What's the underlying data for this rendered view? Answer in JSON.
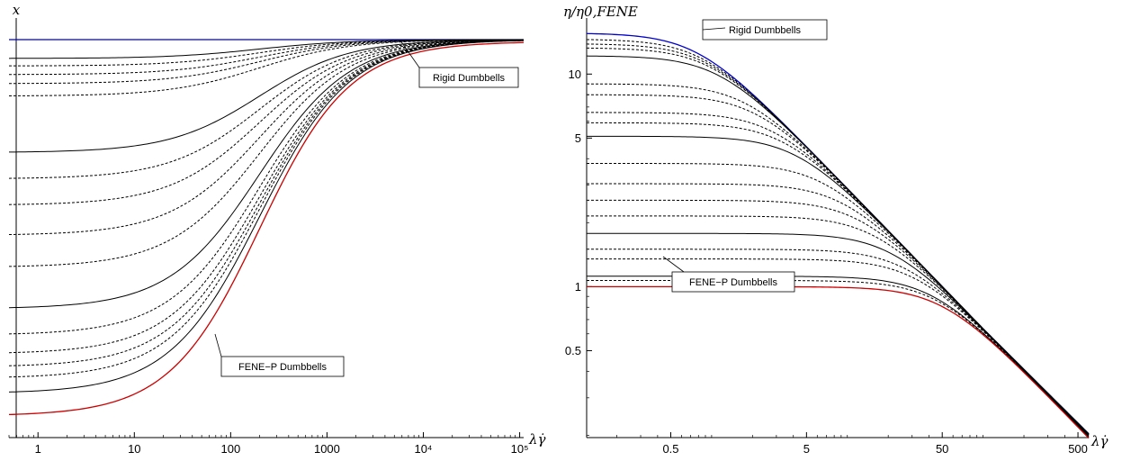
{
  "chart_data": [
    {
      "type": "line",
      "xlabel": "λγ̇",
      "ylabel": "x",
      "x_scale": "log",
      "xlim": [
        0.5,
        110000
      ],
      "x_ticks": [
        "1",
        "10",
        "100",
        "1000",
        "10⁴",
        "10⁵"
      ],
      "y_ticks": [],
      "annotations": [
        "Rigid Dumbbells",
        "FENE−P Dumbbells"
      ],
      "series": [
        {
          "name": "Rigid Dumbbells",
          "color": "#0000cc",
          "style": "solid",
          "y_low": 1.0,
          "y_high": 1.0
        },
        {
          "color": "#000000",
          "style": "solid",
          "y_low": 0.95,
          "y_high": 1.0
        },
        {
          "color": "#000000",
          "style": "dashed",
          "y_low": 0.93,
          "y_high": 1.0
        },
        {
          "color": "#000000",
          "style": "dashed",
          "y_low": 0.907,
          "y_high": 1.0
        },
        {
          "color": "#000000",
          "style": "dashed",
          "y_low": 0.883,
          "y_high": 1.0
        },
        {
          "color": "#000000",
          "style": "dashed",
          "y_low": 0.85,
          "y_high": 1.0
        },
        {
          "color": "#000000",
          "style": "solid",
          "y_low": 0.7,
          "y_high": 1.0
        },
        {
          "color": "#000000",
          "style": "dashed",
          "y_low": 0.63,
          "y_high": 1.0
        },
        {
          "color": "#000000",
          "style": "dashed",
          "y_low": 0.56,
          "y_high": 1.0
        },
        {
          "color": "#000000",
          "style": "dashed",
          "y_low": 0.48,
          "y_high": 1.0
        },
        {
          "color": "#000000",
          "style": "dashed",
          "y_low": 0.395,
          "y_high": 1.0
        },
        {
          "color": "#000000",
          "style": "solid",
          "y_low": 0.285,
          "y_high": 1.0
        },
        {
          "color": "#000000",
          "style": "dashed",
          "y_low": 0.215,
          "y_high": 1.0
        },
        {
          "color": "#000000",
          "style": "dashed",
          "y_low": 0.165,
          "y_high": 1.0
        },
        {
          "color": "#000000",
          "style": "dashed",
          "y_low": 0.13,
          "y_high": 1.0
        },
        {
          "color": "#000000",
          "style": "dashed",
          "y_low": 0.1,
          "y_high": 1.0
        },
        {
          "color": "#000000",
          "style": "solid",
          "y_low": 0.06,
          "y_high": 1.0
        },
        {
          "name": "FENE−P Dumbbells",
          "color": "#cc0000",
          "style": "solid",
          "y_low": 0.0,
          "y_high": 0.995
        }
      ],
      "transition_center_log10": 2.3,
      "transition_width_log10": 0.85
    },
    {
      "type": "line",
      "xlabel": "λγ̇",
      "ylabel": "η/η0,FENE",
      "x_scale": "log",
      "y_scale": "log",
      "xlim": [
        0.12,
        600
      ],
      "ylim": [
        0.195,
        18
      ],
      "x_ticks": [
        0.5,
        5,
        50,
        500
      ],
      "x_tick_labels": [
        "0.5",
        "5",
        "50",
        "500"
      ],
      "y_ticks": [
        0.5,
        1,
        5,
        10
      ],
      "y_tick_labels": [
        "0.5",
        "1",
        "5",
        "10"
      ],
      "annotations": [
        "Rigid Dumbbells",
        "FENE−P Dumbbells"
      ],
      "series": [
        {
          "name": "Rigid Dumbbells",
          "color": "#0000cc",
          "style": "solid",
          "zero_shear": 15.6
        },
        {
          "color": "#000000",
          "style": "dashed",
          "zero_shear": 14.6
        },
        {
          "color": "#000000",
          "style": "dashed",
          "zero_shear": 13.9
        },
        {
          "color": "#000000",
          "style": "dashed",
          "zero_shear": 13.3
        },
        {
          "color": "#000000",
          "style": "solid",
          "zero_shear": 12.2
        },
        {
          "color": "#000000",
          "style": "dashed",
          "zero_shear": 9.0
        },
        {
          "color": "#000000",
          "style": "dashed",
          "zero_shear": 8.0
        },
        {
          "color": "#000000",
          "style": "dashed",
          "zero_shear": 6.6
        },
        {
          "color": "#000000",
          "style": "dashed",
          "zero_shear": 5.9
        },
        {
          "color": "#000000",
          "style": "solid",
          "zero_shear": 5.1
        },
        {
          "color": "#000000",
          "style": "dashed",
          "zero_shear": 3.8
        },
        {
          "color": "#000000",
          "style": "dashed",
          "zero_shear": 3.05
        },
        {
          "color": "#000000",
          "style": "dashed",
          "zero_shear": 2.55
        },
        {
          "color": "#000000",
          "style": "dashed",
          "zero_shear": 2.15
        },
        {
          "color": "#000000",
          "style": "solid",
          "zero_shear": 1.78
        },
        {
          "color": "#000000",
          "style": "dashed",
          "zero_shear": 1.5
        },
        {
          "color": "#000000",
          "style": "dashed",
          "zero_shear": 1.35
        },
        {
          "color": "#000000",
          "style": "solid",
          "zero_shear": 1.12
        },
        {
          "color": "#000000",
          "style": "dashed",
          "zero_shear": 1.07
        },
        {
          "name": "FENE−P Dumbbells",
          "color": "#cc0000",
          "style": "solid",
          "zero_shear": 1.0
        }
      ],
      "corner_log10": 1.7,
      "high_shear_slope": -0.66
    }
  ]
}
